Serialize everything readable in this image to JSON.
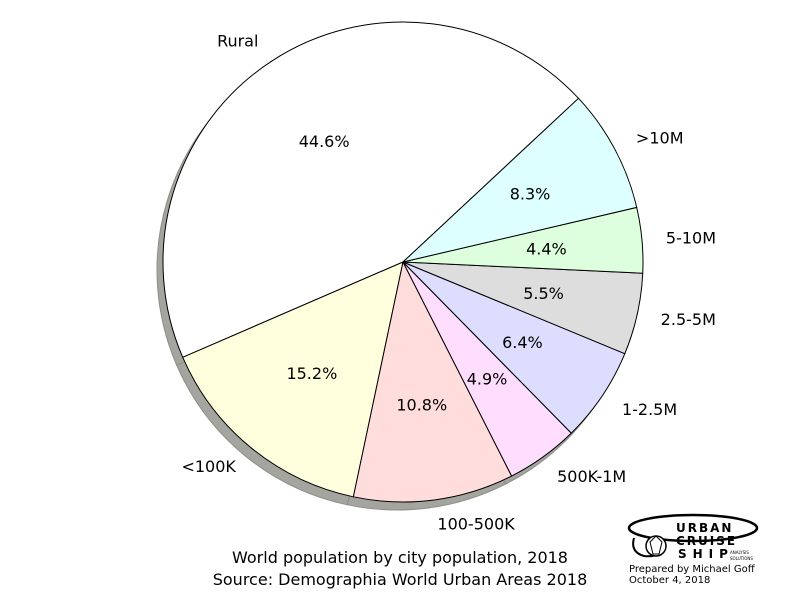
{
  "chart_data": {
    "type": "pie",
    "title": "World population by city population, 2018",
    "subtitle": "Source: Demographia World Urban Areas 2018",
    "shadow": true,
    "slices": [
      {
        "label": "Rural",
        "value": 44.6,
        "pct_label": "44.6%",
        "color": "#ffffff"
      },
      {
        "label": "<100K",
        "value": 15.2,
        "pct_label": "15.2%",
        "color": "#ffffdd"
      },
      {
        "label": "100-500K",
        "value": 10.8,
        "pct_label": "10.8%",
        "color": "#ffdddd"
      },
      {
        "label": "500K-1M",
        "value": 4.9,
        "pct_label": "4.9%",
        "color": "#ffddff"
      },
      {
        "label": "1-2.5M",
        "value": 6.4,
        "pct_label": "6.4%",
        "color": "#ddddff"
      },
      {
        "label": "2.5-5M",
        "value": 5.5,
        "pct_label": "5.5%",
        "color": "#dddddd"
      },
      {
        "label": "5-10M",
        "value": 4.4,
        "pct_label": "4.4%",
        "color": "#ddffdd"
      },
      {
        "label": ">10M",
        "value": 8.3,
        "pct_label": "8.3%",
        "color": "#ddffff"
      }
    ]
  },
  "logo": {
    "line1": "URBAN",
    "line2": "CRUISE",
    "line3": "SHIP",
    "small1": "ANALYSIS",
    "small2": "SOLUTIONS"
  },
  "credit": {
    "prepared_by": "Prepared by Michael Goff",
    "date": "October 4, 2018"
  }
}
